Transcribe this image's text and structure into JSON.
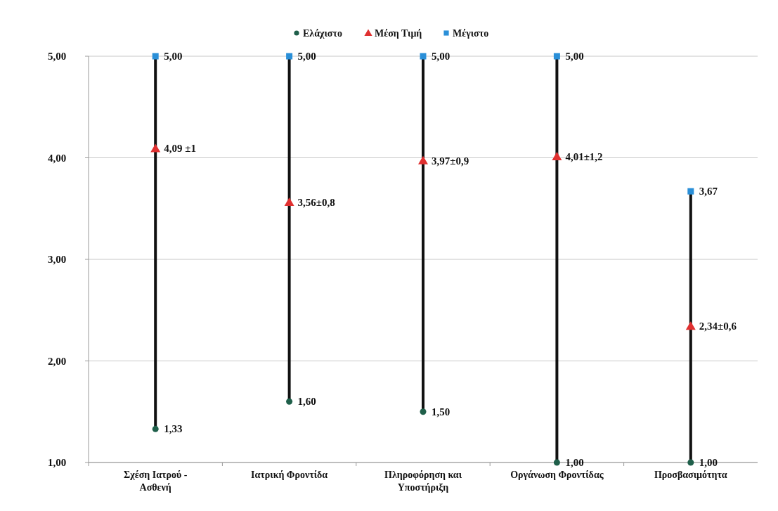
{
  "chart_data": {
    "type": "scatter",
    "categories": [
      "Σχέση Ιατρού - Ασθενή",
      "Ιατρική Φροντίδα",
      "Πληροφόρηση και Υποστήριξη",
      "Οργάνωση Φροντίδας",
      "Προσβασιμότητα"
    ],
    "series": [
      {
        "type": "bar",
        "color": "#111111",
        "base": [
          1.33,
          1.6,
          1.5,
          1.0,
          1.0
        ],
        "values": [
          3.67,
          3.4,
          3.5,
          4.0,
          2.67
        ]
      },
      {
        "name": "Ελάχιστο",
        "color": "#1f5f4a",
        "marker": "circle",
        "values": [
          1.33,
          1.6,
          1.5,
          1.0,
          1.0
        ],
        "value_labels": [
          "1,33",
          "1,60",
          "1,50",
          "1,00",
          "1,00"
        ]
      },
      {
        "name": "Μέση Τιμή",
        "color": "#e03030",
        "marker": "triangle",
        "values": [
          4.09,
          3.56,
          3.97,
          4.01,
          2.34
        ],
        "value_labels": [
          "4,09 ±1",
          "3,56±0,8",
          "3,97±0,9",
          "4,01±1,2",
          "2,34±0,6"
        ]
      },
      {
        "name": "Μέγιστο",
        "color": "#2a8fd8",
        "marker": "square",
        "values": [
          5.0,
          5.0,
          5.0,
          5.0,
          3.67
        ],
        "value_labels": [
          "5,00",
          "5,00",
          "5,00",
          "5,00",
          "3,67"
        ]
      }
    ],
    "ylim": [
      1,
      5
    ],
    "yticks": [
      {
        "value": 1,
        "label": "1,00"
      },
      {
        "value": 2,
        "label": "2,00"
      },
      {
        "value": 3,
        "label": "3,00"
      },
      {
        "value": 4,
        "label": "4,00"
      },
      {
        "value": 5,
        "label": "5,00"
      }
    ],
    "grid": "y",
    "legend": "top"
  }
}
